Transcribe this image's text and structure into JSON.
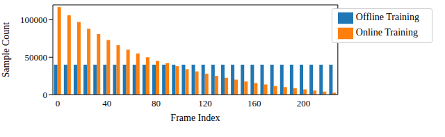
{
  "chart_data": {
    "type": "bar",
    "x_label": "Frame Index",
    "y_label": "Sample Count",
    "categories": [
      "0",
      null,
      null,
      null,
      null,
      "40",
      null,
      null,
      null,
      null,
      "80",
      null,
      null,
      null,
      null,
      "120",
      null,
      null,
      null,
      null,
      "160",
      null,
      null,
      null,
      null,
      "200",
      null,
      null,
      null
    ],
    "series": [
      {
        "name": "Offline Training",
        "color": "#1f77b4",
        "values": [
          40000,
          40000,
          40000,
          40000,
          40000,
          40000,
          40000,
          40000,
          40000,
          40000,
          40000,
          40000,
          40000,
          40000,
          40000,
          40000,
          40000,
          40000,
          40000,
          40000,
          40000,
          40000,
          40000,
          40000,
          40000,
          40000,
          40000,
          40000,
          40000
        ]
      },
      {
        "name": "Online Training",
        "color": "#ff7f0e",
        "values": [
          117000,
          106000,
          97000,
          88000,
          81000,
          73000,
          66000,
          60000,
          55000,
          50000,
          45000,
          42000,
          38000,
          34000,
          31000,
          28000,
          25000,
          22500,
          20000,
          17500,
          15500,
          13500,
          11500,
          10000,
          8500,
          7000,
          5500,
          4000,
          2500
        ]
      }
    ],
    "ylim": [
      0,
      120000
    ],
    "yticks": [
      0,
      50000,
      100000
    ],
    "grid": false,
    "legend": "top-right"
  }
}
